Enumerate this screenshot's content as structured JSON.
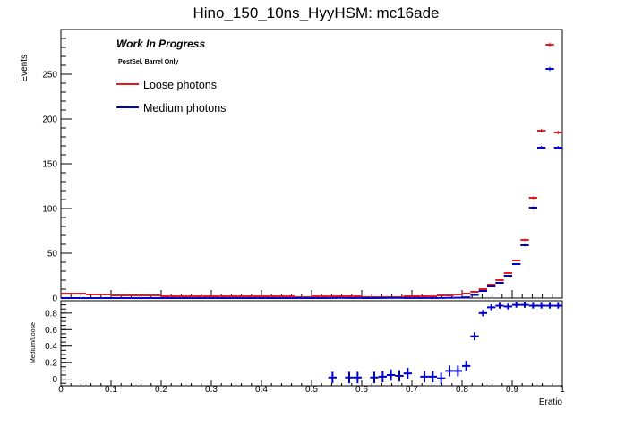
{
  "chart_data": {
    "type": "histogram",
    "title": "Hino_150_10ns_HyyHSM: mc16ade",
    "annotations": [
      "Work In Progress",
      "PostSel, Barrel Only"
    ],
    "legend_position": "top-left",
    "xlabel": "Eratio",
    "xlim": [
      0,
      1
    ],
    "x_ticks": [
      "0",
      "0.1",
      "0.2",
      "0.3",
      "0.4",
      "0.5",
      "0.6",
      "0.7",
      "0.8",
      "0.9",
      "1"
    ],
    "bin_width": 0.0167,
    "bin_centers": [
      0.0083,
      0.025,
      0.0417,
      0.0583,
      0.075,
      0.0917,
      0.1083,
      0.125,
      0.1417,
      0.1583,
      0.175,
      0.1917,
      0.2083,
      0.225,
      0.2417,
      0.2583,
      0.275,
      0.2917,
      0.3083,
      0.325,
      0.3417,
      0.3583,
      0.375,
      0.3917,
      0.4083,
      0.425,
      0.4417,
      0.4583,
      0.475,
      0.4917,
      0.5083,
      0.525,
      0.5417,
      0.5583,
      0.575,
      0.5917,
      0.6083,
      0.625,
      0.6417,
      0.6583,
      0.675,
      0.6917,
      0.7083,
      0.725,
      0.7417,
      0.7583,
      0.775,
      0.7917,
      0.8083,
      0.825,
      0.8417,
      0.8583,
      0.875,
      0.8917,
      0.9083,
      0.925,
      0.9417,
      0.9583,
      0.975,
      0.9917
    ],
    "panels": [
      {
        "ylabel": "Events",
        "ylim": [
          0,
          300
        ],
        "y_ticks": [
          "0",
          "50",
          "100",
          "150",
          "200",
          "250"
        ],
        "series": [
          {
            "name": "Loose photons",
            "color": "#e41a1c",
            "values": [
              5,
              5,
              5,
              4,
              4,
              4,
              3,
              3,
              3,
              3,
              3,
              3,
              2,
              2,
              2,
              2,
              2,
              2,
              2,
              2,
              2,
              2,
              2,
              2,
              2,
              2,
              2,
              2,
              1,
              1,
              2,
              2,
              2,
              2,
              2,
              2,
              1,
              1,
              1,
              1,
              1,
              2,
              2,
              2,
              2,
              3,
              3,
              4,
              5,
              7,
              10,
              15,
              20,
              28,
              42,
              65,
              112,
              187,
              283,
              185
            ]
          },
          {
            "name": "Medium photons",
            "color": "#0000cc",
            "values": [
              0,
              0,
              0,
              0,
              0,
              0,
              0,
              0,
              0,
              0,
              0,
              0,
              0,
              0,
              0,
              0,
              0,
              0,
              0,
              0,
              0,
              0,
              0,
              0,
              0,
              0,
              0,
              0,
              0,
              0,
              0,
              0,
              0.1,
              0.2,
              0.1,
              0.1,
              0,
              0,
              0.1,
              0.2,
              0.2,
              0.1,
              0.1,
              0.1,
              0.1,
              0.1,
              0.3,
              0.4,
              0.8,
              3.5,
              8,
              13,
              17,
              25,
              38,
              59,
              101,
              168,
              256,
              168
            ]
          }
        ]
      },
      {
        "ylabel": "Medium/Loose",
        "ylim": [
          -0.08,
          0.95
        ],
        "y_ticks": [
          "0",
          "0.2",
          "0.4",
          "0.6",
          "0.8"
        ],
        "series": [
          {
            "name": "Medium/Loose",
            "color": "#0000cc",
            "x": [
              0.5417,
              0.575,
              0.5917,
              0.625,
              0.6417,
              0.6583,
              0.675,
              0.6917,
              0.725,
              0.7417,
              0.7583,
              0.775,
              0.7917,
              0.8083,
              0.825,
              0.8417,
              0.8583,
              0.875,
              0.8917,
              0.9083,
              0.925,
              0.9417,
              0.9583,
              0.975,
              0.9917
            ],
            "values": [
              0.02,
              0.02,
              0.02,
              0.02,
              0.03,
              0.05,
              0.04,
              0.07,
              0.03,
              0.03,
              0.01,
              0.1,
              0.1,
              0.16,
              0.52,
              0.8,
              0.87,
              0.89,
              0.88,
              0.9,
              0.9,
              0.89,
              0.89,
              0.89,
              0.89
            ]
          }
        ]
      }
    ]
  }
}
